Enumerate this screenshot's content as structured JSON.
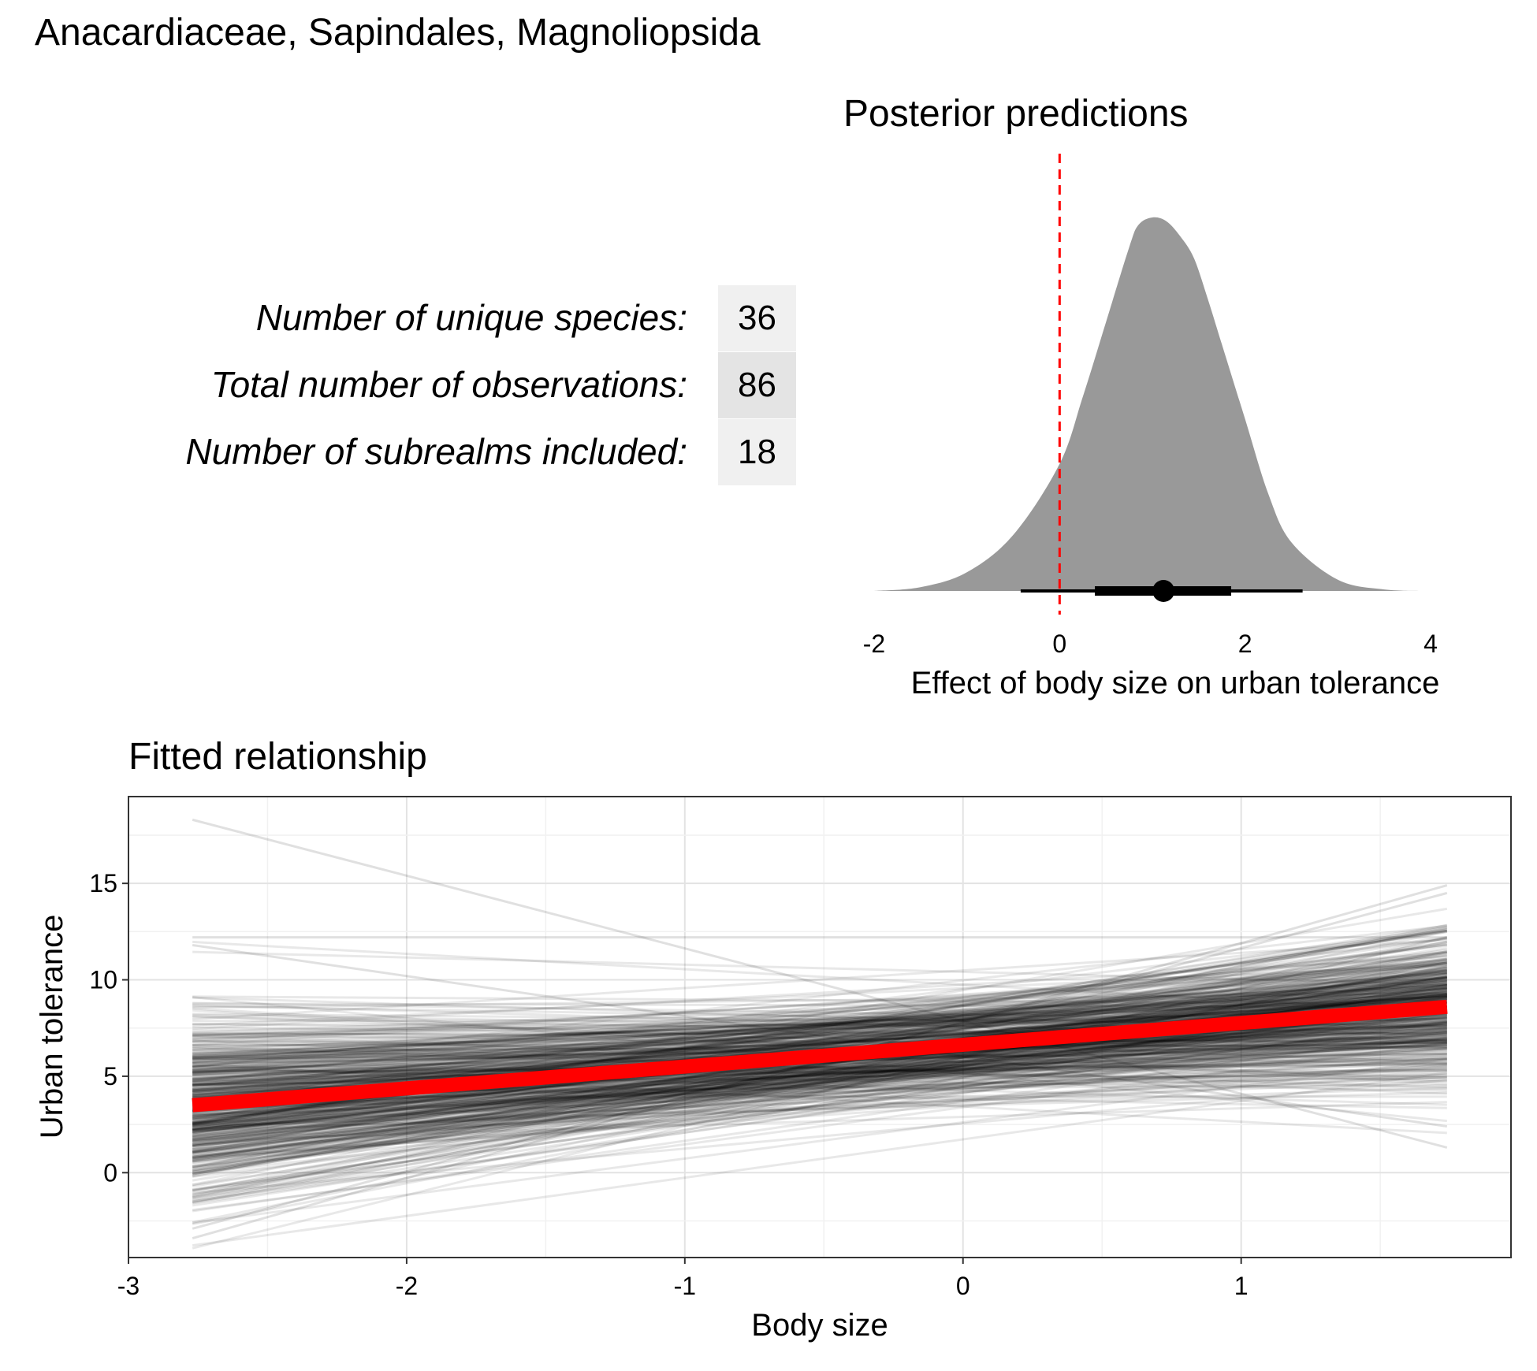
{
  "page": {
    "title": "Anacardiaceae, Sapindales, Magnoliopsida"
  },
  "stats_table": {
    "rows": [
      {
        "label": "Number of unique species:",
        "value": "36",
        "fill": "#f0f0f0"
      },
      {
        "label": "Total number of observations:",
        "value": "86",
        "fill": "#e4e4e4"
      },
      {
        "label": "Number of subrealms included:",
        "value": "18",
        "fill": "#f0f0f0"
      }
    ]
  },
  "chart_data": [
    {
      "type": "area",
      "title": "Posterior predictions",
      "xlabel": "Effect of body size on urban tolerance",
      "ylabel": "",
      "xlim": [
        -2,
        4
      ],
      "x_ticks": [
        -2,
        0,
        2,
        4
      ],
      "x_tick_labels": [
        "-2",
        "0",
        "2",
        "4"
      ],
      "grid": false,
      "density": {
        "fill": "#999999",
        "x": [
          -2.0,
          -1.5,
          -1.0,
          -0.5,
          0.0,
          0.25,
          0.5,
          0.75,
          0.85,
          1.0,
          1.15,
          1.3,
          1.45,
          1.6,
          1.75,
          2.0,
          2.25,
          2.5,
          3.0,
          3.5,
          4.0
        ],
        "y": [
          0.0,
          0.01,
          0.05,
          0.15,
          0.34,
          0.52,
          0.72,
          0.92,
          0.98,
          1.0,
          0.99,
          0.95,
          0.89,
          0.78,
          0.66,
          0.46,
          0.26,
          0.13,
          0.03,
          0.004,
          0.0
        ]
      },
      "point_interval": {
        "point": 1.12,
        "inner_interval": [
          0.38,
          1.85
        ],
        "outer_interval": [
          -0.42,
          2.62
        ],
        "color": "#000000"
      },
      "reference_line": {
        "x": 0,
        "color": "#ff0000",
        "style": "dashed"
      }
    },
    {
      "type": "line",
      "title": "Fitted relationship",
      "xlabel": "Body size",
      "ylabel": "Urban tolerance",
      "xlim": [
        -3.0,
        1.97
      ],
      "ylim": [
        -4.4,
        19.5
      ],
      "x_ticks": [
        -3,
        -2,
        -1,
        0,
        1
      ],
      "x_tick_labels": [
        "-3",
        "-2",
        "-1",
        "0",
        "1"
      ],
      "y_ticks": [
        0,
        5,
        10,
        15
      ],
      "y_tick_labels": [
        "0",
        "5",
        "10",
        "15"
      ],
      "grid": true,
      "x_range": [
        -2.77,
        1.74
      ],
      "mean_line": {
        "x": [
          -2.77,
          1.74
        ],
        "y": [
          3.5,
          8.6
        ],
        "color": "#ff0000"
      },
      "posterior_draws": {
        "count": 500,
        "color": "#000000",
        "opacity": 0.09,
        "intercept_mean": 6.6,
        "intercept_sd": 1.4,
        "slope_mean": 1.12,
        "slope_sd": 0.75
      },
      "highlighted_draws": [
        {
          "x": [
            -2.77,
            1.74
          ],
          "y": [
            18.3,
            1.3
          ]
        },
        {
          "x": [
            -2.77,
            1.74
          ],
          "y": [
            12.2,
            12.2
          ]
        },
        {
          "x": [
            -2.77,
            1.74
          ],
          "y": [
            11.8,
            2.4
          ]
        },
        {
          "x": [
            -2.77,
            1.74
          ],
          "y": [
            -3.4,
            14.9
          ]
        },
        {
          "x": [
            -2.77,
            1.74
          ],
          "y": [
            -2.9,
            14.5
          ]
        }
      ]
    }
  ]
}
